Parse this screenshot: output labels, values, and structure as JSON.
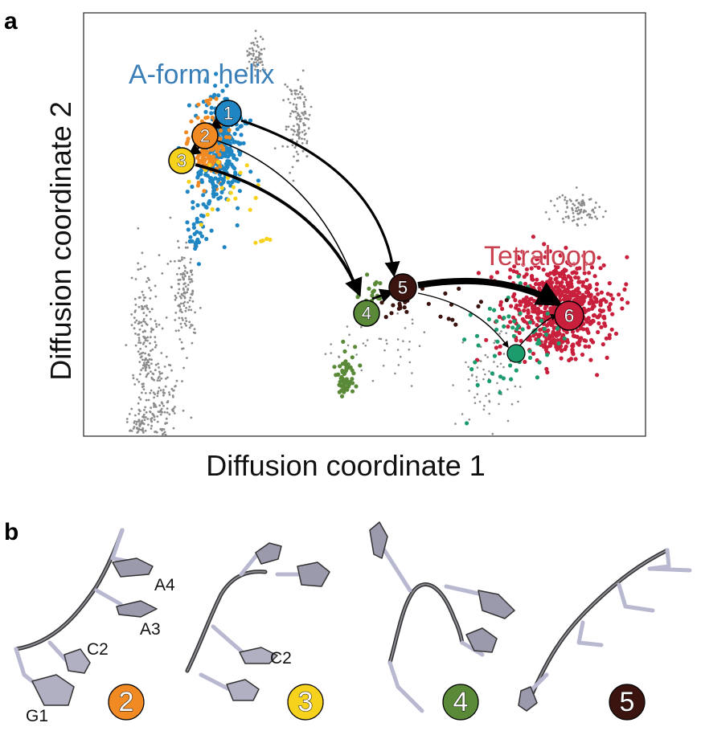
{
  "panel_a": {
    "letter": "a",
    "xlabel": "Diffusion coordinate 1",
    "ylabel": "Diffusion coordinate 2",
    "regions": [
      {
        "label": "A-form helix",
        "color": "#3b7fb8"
      },
      {
        "label": "Tetraloop",
        "color": "#c94050"
      }
    ],
    "states": [
      {
        "id": "1",
        "color": "#1f86c3"
      },
      {
        "id": "2",
        "color": "#f28a24"
      },
      {
        "id": "3",
        "color": "#f7d21c"
      },
      {
        "id": "4",
        "color": "#5a8a38"
      },
      {
        "id": "5",
        "color": "#3b1410"
      },
      {
        "id": "6",
        "color": "#c8203c"
      },
      {
        "id": "",
        "color": "#1c9c6c"
      }
    ]
  },
  "panel_b": {
    "letter": "b",
    "residue_labels": [
      "A4",
      "A3",
      "C2",
      "G1",
      "C2"
    ],
    "structures": [
      {
        "state": "2",
        "color": "#f28a24"
      },
      {
        "state": "3",
        "color": "#f7d21c"
      },
      {
        "state": "4",
        "color": "#5a8a38"
      },
      {
        "state": "5",
        "color": "#3b1410"
      }
    ]
  }
}
